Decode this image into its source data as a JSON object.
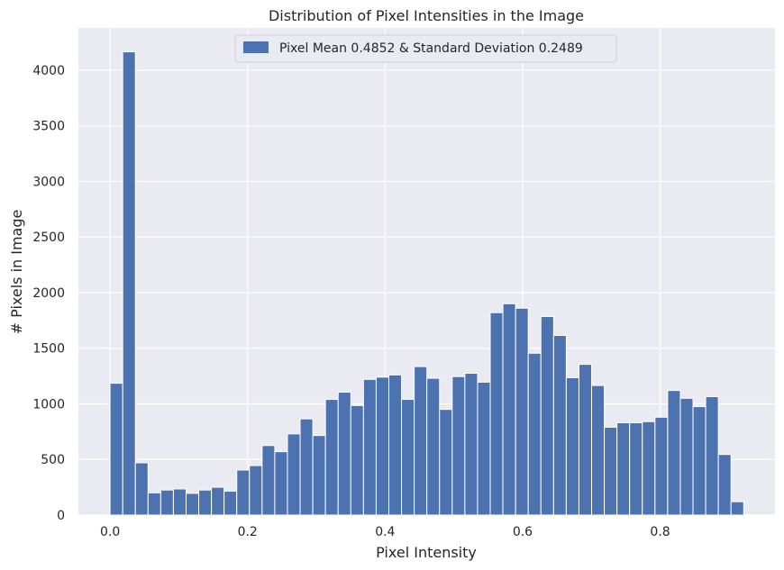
{
  "chart_data": {
    "type": "bar",
    "title": "Distribution of Pixel Intensities in the Image",
    "xlabel": "Pixel Intensity",
    "ylabel": "# Pixels in Image",
    "legend": {
      "label": "Pixel Mean 0.4852 & Standard Deviation 0.2489",
      "position": "upper center"
    },
    "xlim": [
      -0.046,
      0.967
    ],
    "ylim": [
      0,
      4380
    ],
    "x_ticks": [
      "0.0",
      "0.2",
      "0.4",
      "0.6",
      "0.8"
    ],
    "x_tick_values": [
      0.0,
      0.2,
      0.4,
      0.6,
      0.8
    ],
    "y_ticks": [
      "0",
      "500",
      "1000",
      "1500",
      "2000",
      "2500",
      "3000",
      "3500",
      "4000"
    ],
    "y_tick_values": [
      0,
      500,
      1000,
      1500,
      2000,
      2500,
      3000,
      3500,
      4000
    ],
    "grid": true,
    "colors": {
      "bar": "#4c72b0",
      "background": "#eaeaf2",
      "grid": "#ffffff"
    },
    "bins": {
      "start": 0.0,
      "width": 0.01843,
      "values": [
        1185,
        4165,
        470,
        200,
        225,
        235,
        195,
        225,
        250,
        215,
        405,
        445,
        625,
        570,
        730,
        865,
        715,
        1040,
        1105,
        985,
        1220,
        1240,
        1260,
        1040,
        1335,
        1230,
        950,
        1245,
        1275,
        1195,
        1820,
        1900,
        1860,
        1455,
        1785,
        1615,
        1235,
        1355,
        1165,
        790,
        830,
        830,
        840,
        880,
        1120,
        1050,
        975,
        1065,
        545,
        120
      ]
    }
  }
}
